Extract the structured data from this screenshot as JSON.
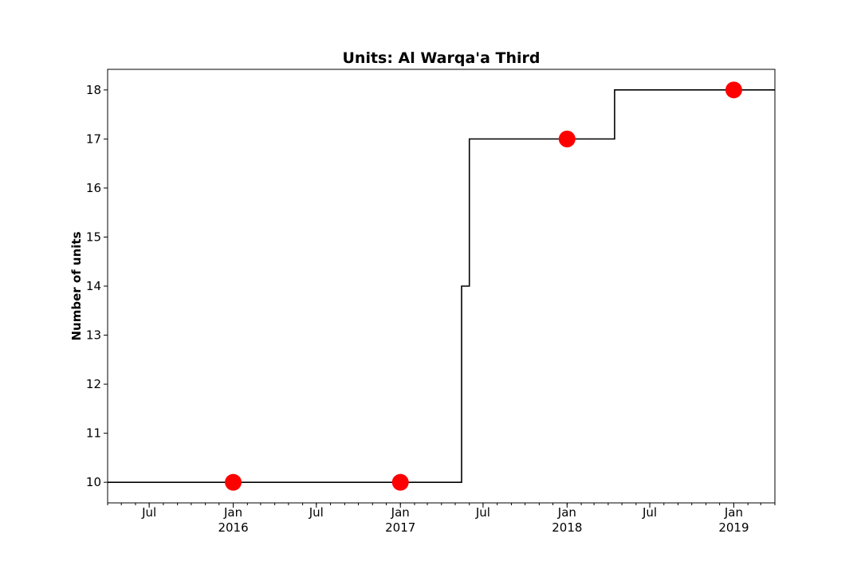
{
  "chart_data": {
    "type": "line",
    "title": "Units: Al Warqa'a Third",
    "xlabel": "",
    "ylabel": "Number of units",
    "xlim": [
      "2015-04-01",
      "2019-04-01"
    ],
    "ylim": [
      9.58,
      18.42
    ],
    "grid": false,
    "legend": "none",
    "y_ticks": [
      10,
      11,
      12,
      13,
      14,
      15,
      16,
      17,
      18
    ],
    "y_tick_labels": [
      "10",
      "11",
      "12",
      "13",
      "14",
      "15",
      "16",
      "17",
      "18"
    ],
    "x_ticks": [
      {
        "date": "2015-07-01",
        "label": "Jul",
        "sublabel": ""
      },
      {
        "date": "2016-01-01",
        "label": "Jan",
        "sublabel": "2016"
      },
      {
        "date": "2016-07-01",
        "label": "Jul",
        "sublabel": ""
      },
      {
        "date": "2017-01-01",
        "label": "Jan",
        "sublabel": "2017"
      },
      {
        "date": "2017-07-01",
        "label": "Jul",
        "sublabel": ""
      },
      {
        "date": "2018-01-01",
        "label": "Jan",
        "sublabel": "2018"
      },
      {
        "date": "2018-07-01",
        "label": "Jul",
        "sublabel": ""
      },
      {
        "date": "2019-01-01",
        "label": "Jan",
        "sublabel": "2019"
      }
    ],
    "series": [
      {
        "style": "step",
        "color": "#000000",
        "points": [
          {
            "x": "2015-04-01",
            "y": 10
          },
          {
            "x": "2017-05-15",
            "y": 14
          },
          {
            "x": "2017-06-01",
            "y": 17
          },
          {
            "x": "2018-04-15",
            "y": 18
          },
          {
            "x": "2019-04-01",
            "y": 18
          }
        ]
      },
      {
        "style": "markers",
        "color": "#ff0000",
        "points": [
          {
            "x": "2016-01-01",
            "y": 10
          },
          {
            "x": "2017-01-01",
            "y": 10
          },
          {
            "x": "2018-01-01",
            "y": 17
          },
          {
            "x": "2019-01-01",
            "y": 18
          }
        ]
      }
    ]
  }
}
